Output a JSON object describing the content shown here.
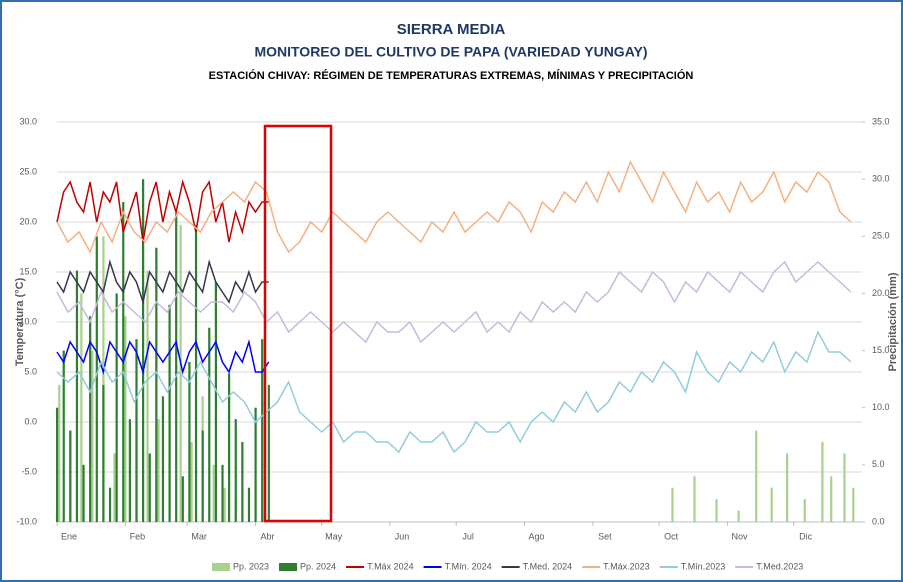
{
  "chart_data": {
    "type": "combo",
    "title": "SIERRA MEDIA",
    "subtitle": "MONITOREO DEL CULTIVO DE PAPA (VARIEDAD YUNGAY)",
    "subtitle2": "ESTACIÓN CHIVAY: RÉGIMEN DE TEMPERATURAS EXTREMAS, MÍNIMAS Y PRECIPITACIÓN",
    "y_label": "Temperatura (°C)",
    "y2_label": "Precipitación (mm)",
    "xlim": [
      1,
      366
    ],
    "xticks": [
      {
        "value": 1,
        "label": "Ene"
      },
      {
        "value": 32,
        "label": "Feb"
      },
      {
        "value": 60,
        "label": "Mar"
      },
      {
        "value": 91,
        "label": "Abr"
      },
      {
        "value": 121,
        "label": "May"
      },
      {
        "value": 152,
        "label": "Jun"
      },
      {
        "value": 182,
        "label": "Jul"
      },
      {
        "value": 213,
        "label": "Ago"
      },
      {
        "value": 244,
        "label": "Set"
      },
      {
        "value": 274,
        "label": "Oct"
      },
      {
        "value": 305,
        "label": "Nov"
      },
      {
        "value": 335,
        "label": "Dic"
      }
    ],
    "ylim": [
      -10,
      30
    ],
    "yticks": [
      {
        "value": -10,
        "label": "-10.0"
      },
      {
        "value": -5,
        "label": "-5.0"
      },
      {
        "value": 0,
        "label": "0.0"
      },
      {
        "value": 5,
        "label": "5.0"
      },
      {
        "value": 10,
        "label": "10.0"
      },
      {
        "value": 15,
        "label": "15.0"
      },
      {
        "value": 20,
        "label": "20.0"
      },
      {
        "value": 25,
        "label": "25.0"
      },
      {
        "value": 30,
        "label": "30.0"
      }
    ],
    "y2lim": [
      0,
      35
    ],
    "y2ticks": [
      {
        "value": 0,
        "label": "0.0"
      },
      {
        "value": 5,
        "label": "5.0"
      },
      {
        "value": 10,
        "label": "10.0"
      },
      {
        "value": 15,
        "label": "15.0"
      },
      {
        "value": 20,
        "label": "20.0"
      },
      {
        "value": 25,
        "label": "25.0"
      },
      {
        "value": 30,
        "label": "30.0"
      },
      {
        "value": 35,
        "label": "35.0"
      }
    ],
    "grid": true,
    "legend": "bottom",
    "series": [
      {
        "name": "Pp. 2023",
        "type": "bar",
        "axis": "y2",
        "color": "#a9d18e",
        "x": [
          2,
          7,
          12,
          17,
          22,
          27,
          32,
          37,
          42,
          47,
          52,
          57,
          62,
          67,
          72,
          77,
          82,
          280,
          290,
          300,
          310,
          318,
          325,
          332,
          340,
          348,
          352,
          358,
          362
        ],
        "values": [
          12,
          8,
          20,
          15,
          25,
          6,
          18,
          10,
          22,
          9,
          14,
          26,
          7,
          11,
          5,
          3,
          2,
          3,
          4,
          2,
          1,
          8,
          3,
          6,
          2,
          7,
          4,
          6,
          3
        ]
      },
      {
        "name": "Pp. 2024",
        "type": "bar",
        "axis": "y2",
        "color": "#2e7d32",
        "x": [
          1,
          4,
          7,
          10,
          13,
          16,
          19,
          22,
          25,
          28,
          31,
          34,
          37,
          40,
          43,
          46,
          49,
          52,
          55,
          58,
          61,
          64,
          67,
          70,
          73,
          76,
          79,
          82,
          85,
          88,
          91,
          94,
          97
        ],
        "values": [
          10,
          15,
          8,
          22,
          5,
          18,
          25,
          12,
          3,
          20,
          28,
          9,
          16,
          30,
          6,
          24,
          11,
          19,
          27,
          4,
          14,
          26,
          8,
          17,
          21,
          5,
          13,
          9,
          7,
          3,
          10,
          16,
          12
        ]
      },
      {
        "name": "T.Máx 2024",
        "type": "line",
        "color": "#c00000",
        "x": [
          1,
          4,
          7,
          10,
          13,
          16,
          19,
          22,
          25,
          28,
          31,
          34,
          37,
          40,
          43,
          46,
          49,
          52,
          55,
          58,
          61,
          64,
          67,
          70,
          73,
          76,
          79,
          82,
          85,
          88,
          91,
          94,
          97
        ],
        "values": [
          20,
          23,
          24,
          22,
          21,
          24,
          20,
          23,
          22,
          24,
          19,
          21,
          23,
          18,
          22,
          24,
          20,
          23,
          21,
          24,
          22,
          19,
          23,
          24,
          20,
          22,
          18,
          21,
          19,
          22,
          21,
          22,
          22
        ]
      },
      {
        "name": "T.Mín. 2024",
        "type": "line",
        "color": "#0000ff",
        "x": [
          1,
          4,
          7,
          10,
          13,
          16,
          19,
          22,
          25,
          28,
          31,
          34,
          37,
          40,
          43,
          46,
          49,
          52,
          55,
          58,
          61,
          64,
          67,
          70,
          73,
          76,
          79,
          82,
          85,
          88,
          91,
          94,
          97
        ],
        "values": [
          7,
          6,
          8,
          7,
          6,
          8,
          7,
          5,
          8,
          7,
          6,
          8,
          7,
          5,
          8,
          7,
          6,
          7,
          8,
          5,
          7,
          8,
          6,
          7,
          8,
          6,
          5,
          7,
          6,
          8,
          5,
          5,
          6
        ]
      },
      {
        "name": "T.Med. 2024",
        "type": "line",
        "color": "#3b3650",
        "x": [
          1,
          4,
          7,
          10,
          13,
          16,
          19,
          22,
          25,
          28,
          31,
          34,
          37,
          40,
          43,
          46,
          49,
          52,
          55,
          58,
          61,
          64,
          67,
          70,
          73,
          76,
          79,
          82,
          85,
          88,
          91,
          94,
          97
        ],
        "values": [
          14,
          13,
          15,
          14,
          13,
          15,
          14,
          13,
          16,
          14,
          13,
          15,
          14,
          12,
          15,
          14,
          13,
          15,
          14,
          13,
          15,
          14,
          13,
          16,
          14,
          13,
          12,
          14,
          13,
          15,
          13,
          14,
          14
        ]
      },
      {
        "name": "T.Máx.2023",
        "type": "line",
        "color": "#f4b183",
        "x": [
          1,
          6,
          11,
          16,
          21,
          26,
          31,
          36,
          41,
          46,
          51,
          56,
          61,
          66,
          71,
          76,
          81,
          86,
          91,
          96,
          101,
          106,
          111,
          116,
          121,
          126,
          131,
          136,
          141,
          146,
          151,
          156,
          161,
          166,
          171,
          176,
          181,
          186,
          191,
          196,
          201,
          206,
          211,
          216,
          221,
          226,
          231,
          236,
          241,
          246,
          251,
          256,
          261,
          266,
          271,
          276,
          281,
          286,
          291,
          296,
          301,
          306,
          311,
          316,
          321,
          326,
          331,
          336,
          341,
          346,
          351,
          356,
          361
        ],
        "values": [
          20,
          18,
          19,
          17,
          20,
          18,
          21,
          19,
          18,
          20,
          19,
          21,
          20,
          19,
          21,
          22,
          23,
          22,
          24,
          23,
          19,
          17,
          18,
          20,
          19,
          21,
          20,
          19,
          18,
          20,
          21,
          20,
          19,
          18,
          20,
          19,
          21,
          19,
          20,
          21,
          20,
          22,
          21,
          19,
          22,
          21,
          23,
          22,
          24,
          22,
          25,
          23,
          26,
          24,
          22,
          25,
          23,
          21,
          24,
          22,
          23,
          21,
          24,
          22,
          23,
          25,
          22,
          24,
          23,
          25,
          24,
          21,
          20
        ]
      },
      {
        "name": "T.Mín.2023",
        "type": "line",
        "color": "#92cddc",
        "x": [
          1,
          6,
          11,
          16,
          21,
          26,
          31,
          36,
          41,
          46,
          51,
          56,
          61,
          66,
          71,
          76,
          81,
          86,
          91,
          96,
          101,
          106,
          111,
          116,
          121,
          126,
          131,
          136,
          141,
          146,
          151,
          156,
          161,
          166,
          171,
          176,
          181,
          186,
          191,
          196,
          201,
          206,
          211,
          216,
          221,
          226,
          231,
          236,
          241,
          246,
          251,
          256,
          261,
          266,
          271,
          276,
          281,
          286,
          291,
          296,
          301,
          306,
          311,
          316,
          321,
          326,
          331,
          336,
          341,
          346,
          351,
          356,
          361
        ],
        "values": [
          5,
          4,
          5,
          3,
          6,
          4,
          5,
          2,
          4,
          5,
          3,
          5,
          4,
          6,
          4,
          2,
          3,
          2,
          0,
          1,
          2,
          4,
          1,
          0,
          -1,
          0,
          -2,
          -1,
          -1,
          -2,
          -2,
          -3,
          -1,
          -2,
          -2,
          -1,
          -3,
          -2,
          0,
          -1,
          -1,
          0,
          -2,
          0,
          1,
          0,
          2,
          1,
          3,
          1,
          2,
          4,
          3,
          5,
          4,
          6,
          5,
          3,
          7,
          5,
          4,
          6,
          5,
          7,
          6,
          8,
          5,
          7,
          6,
          9,
          7,
          7,
          6
        ]
      },
      {
        "name": "T.Med.2023",
        "type": "line",
        "color": "#c9b8e0",
        "x": [
          1,
          6,
          11,
          16,
          21,
          26,
          31,
          36,
          41,
          46,
          51,
          56,
          61,
          66,
          71,
          76,
          81,
          86,
          91,
          96,
          101,
          106,
          111,
          116,
          121,
          126,
          131,
          136,
          141,
          146,
          151,
          156,
          161,
          166,
          171,
          176,
          181,
          186,
          191,
          196,
          201,
          206,
          211,
          216,
          221,
          226,
          231,
          236,
          241,
          246,
          251,
          256,
          261,
          266,
          271,
          276,
          281,
          286,
          291,
          296,
          301,
          306,
          311,
          316,
          321,
          326,
          331,
          336,
          341,
          346,
          351,
          356,
          361
        ],
        "values": [
          13,
          11,
          12,
          10,
          13,
          11,
          12,
          11,
          10,
          12,
          11,
          13,
          12,
          11,
          12,
          12,
          11,
          13,
          12,
          10,
          11,
          9,
          10,
          11,
          10,
          9,
          10,
          9,
          8,
          10,
          9,
          9,
          10,
          8,
          9,
          10,
          9,
          10,
          11,
          9,
          10,
          9,
          11,
          10,
          12,
          11,
          12,
          11,
          13,
          12,
          13,
          15,
          14,
          13,
          15,
          14,
          12,
          14,
          13,
          15,
          14,
          13,
          15,
          14,
          13,
          15,
          16,
          14,
          15,
          16,
          15,
          14,
          13
        ]
      }
    ]
  }
}
